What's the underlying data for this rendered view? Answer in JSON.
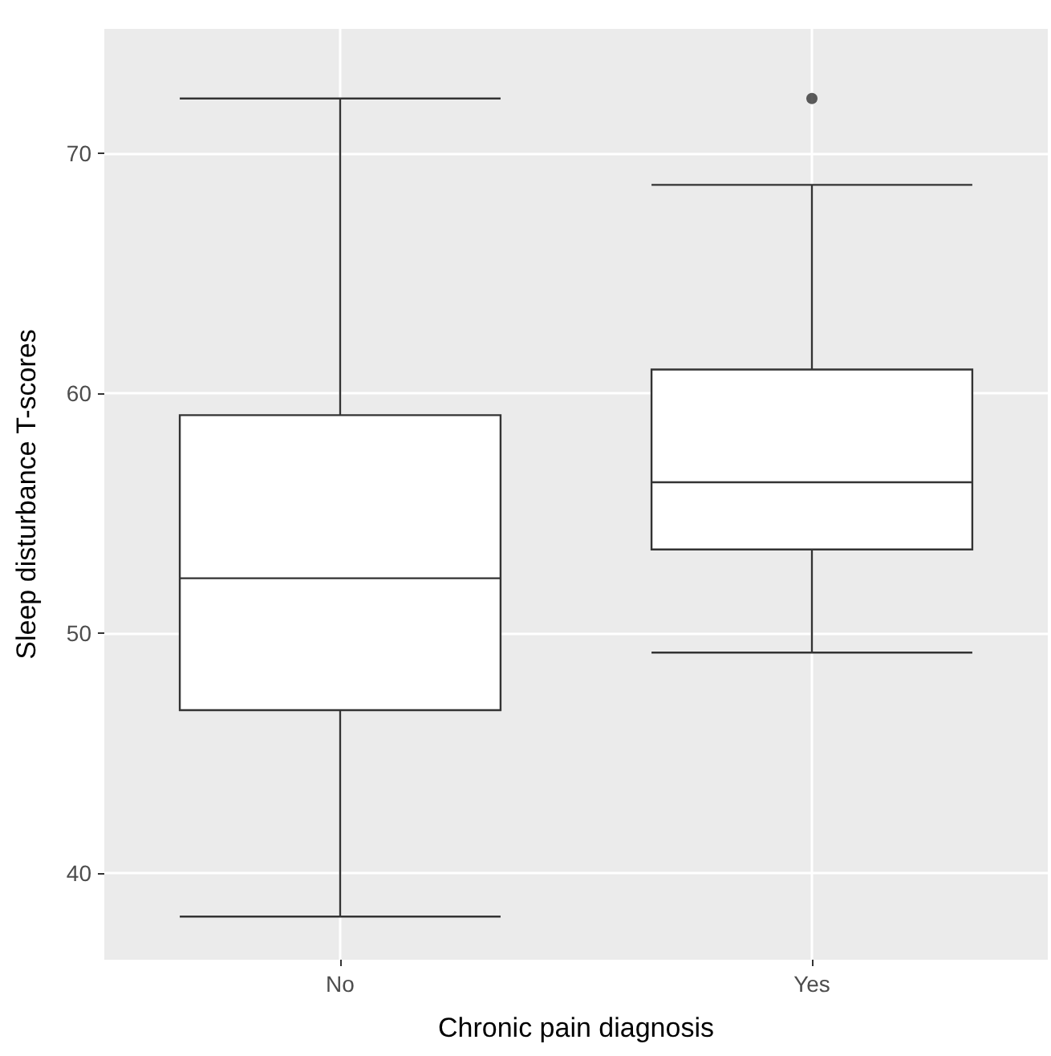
{
  "chart_data": {
    "type": "box",
    "xlabel": "Chronic pain diagnosis",
    "ylabel": "Sleep disturbance T-scores",
    "categories": [
      "No",
      "Yes"
    ],
    "boxes": [
      {
        "low": 38.2,
        "q1": 46.8,
        "median": 52.3,
        "q3": 59.1,
        "high": 72.3
      },
      {
        "low": 49.2,
        "q1": 53.5,
        "median": 56.3,
        "q3": 61.0,
        "high": 68.7,
        "outliers": [
          72.3
        ]
      }
    ],
    "color": "#333333",
    "ylim": [
      36.4,
      75.2
    ],
    "yticks": [
      40,
      50,
      60,
      70
    ],
    "grid": true
  }
}
